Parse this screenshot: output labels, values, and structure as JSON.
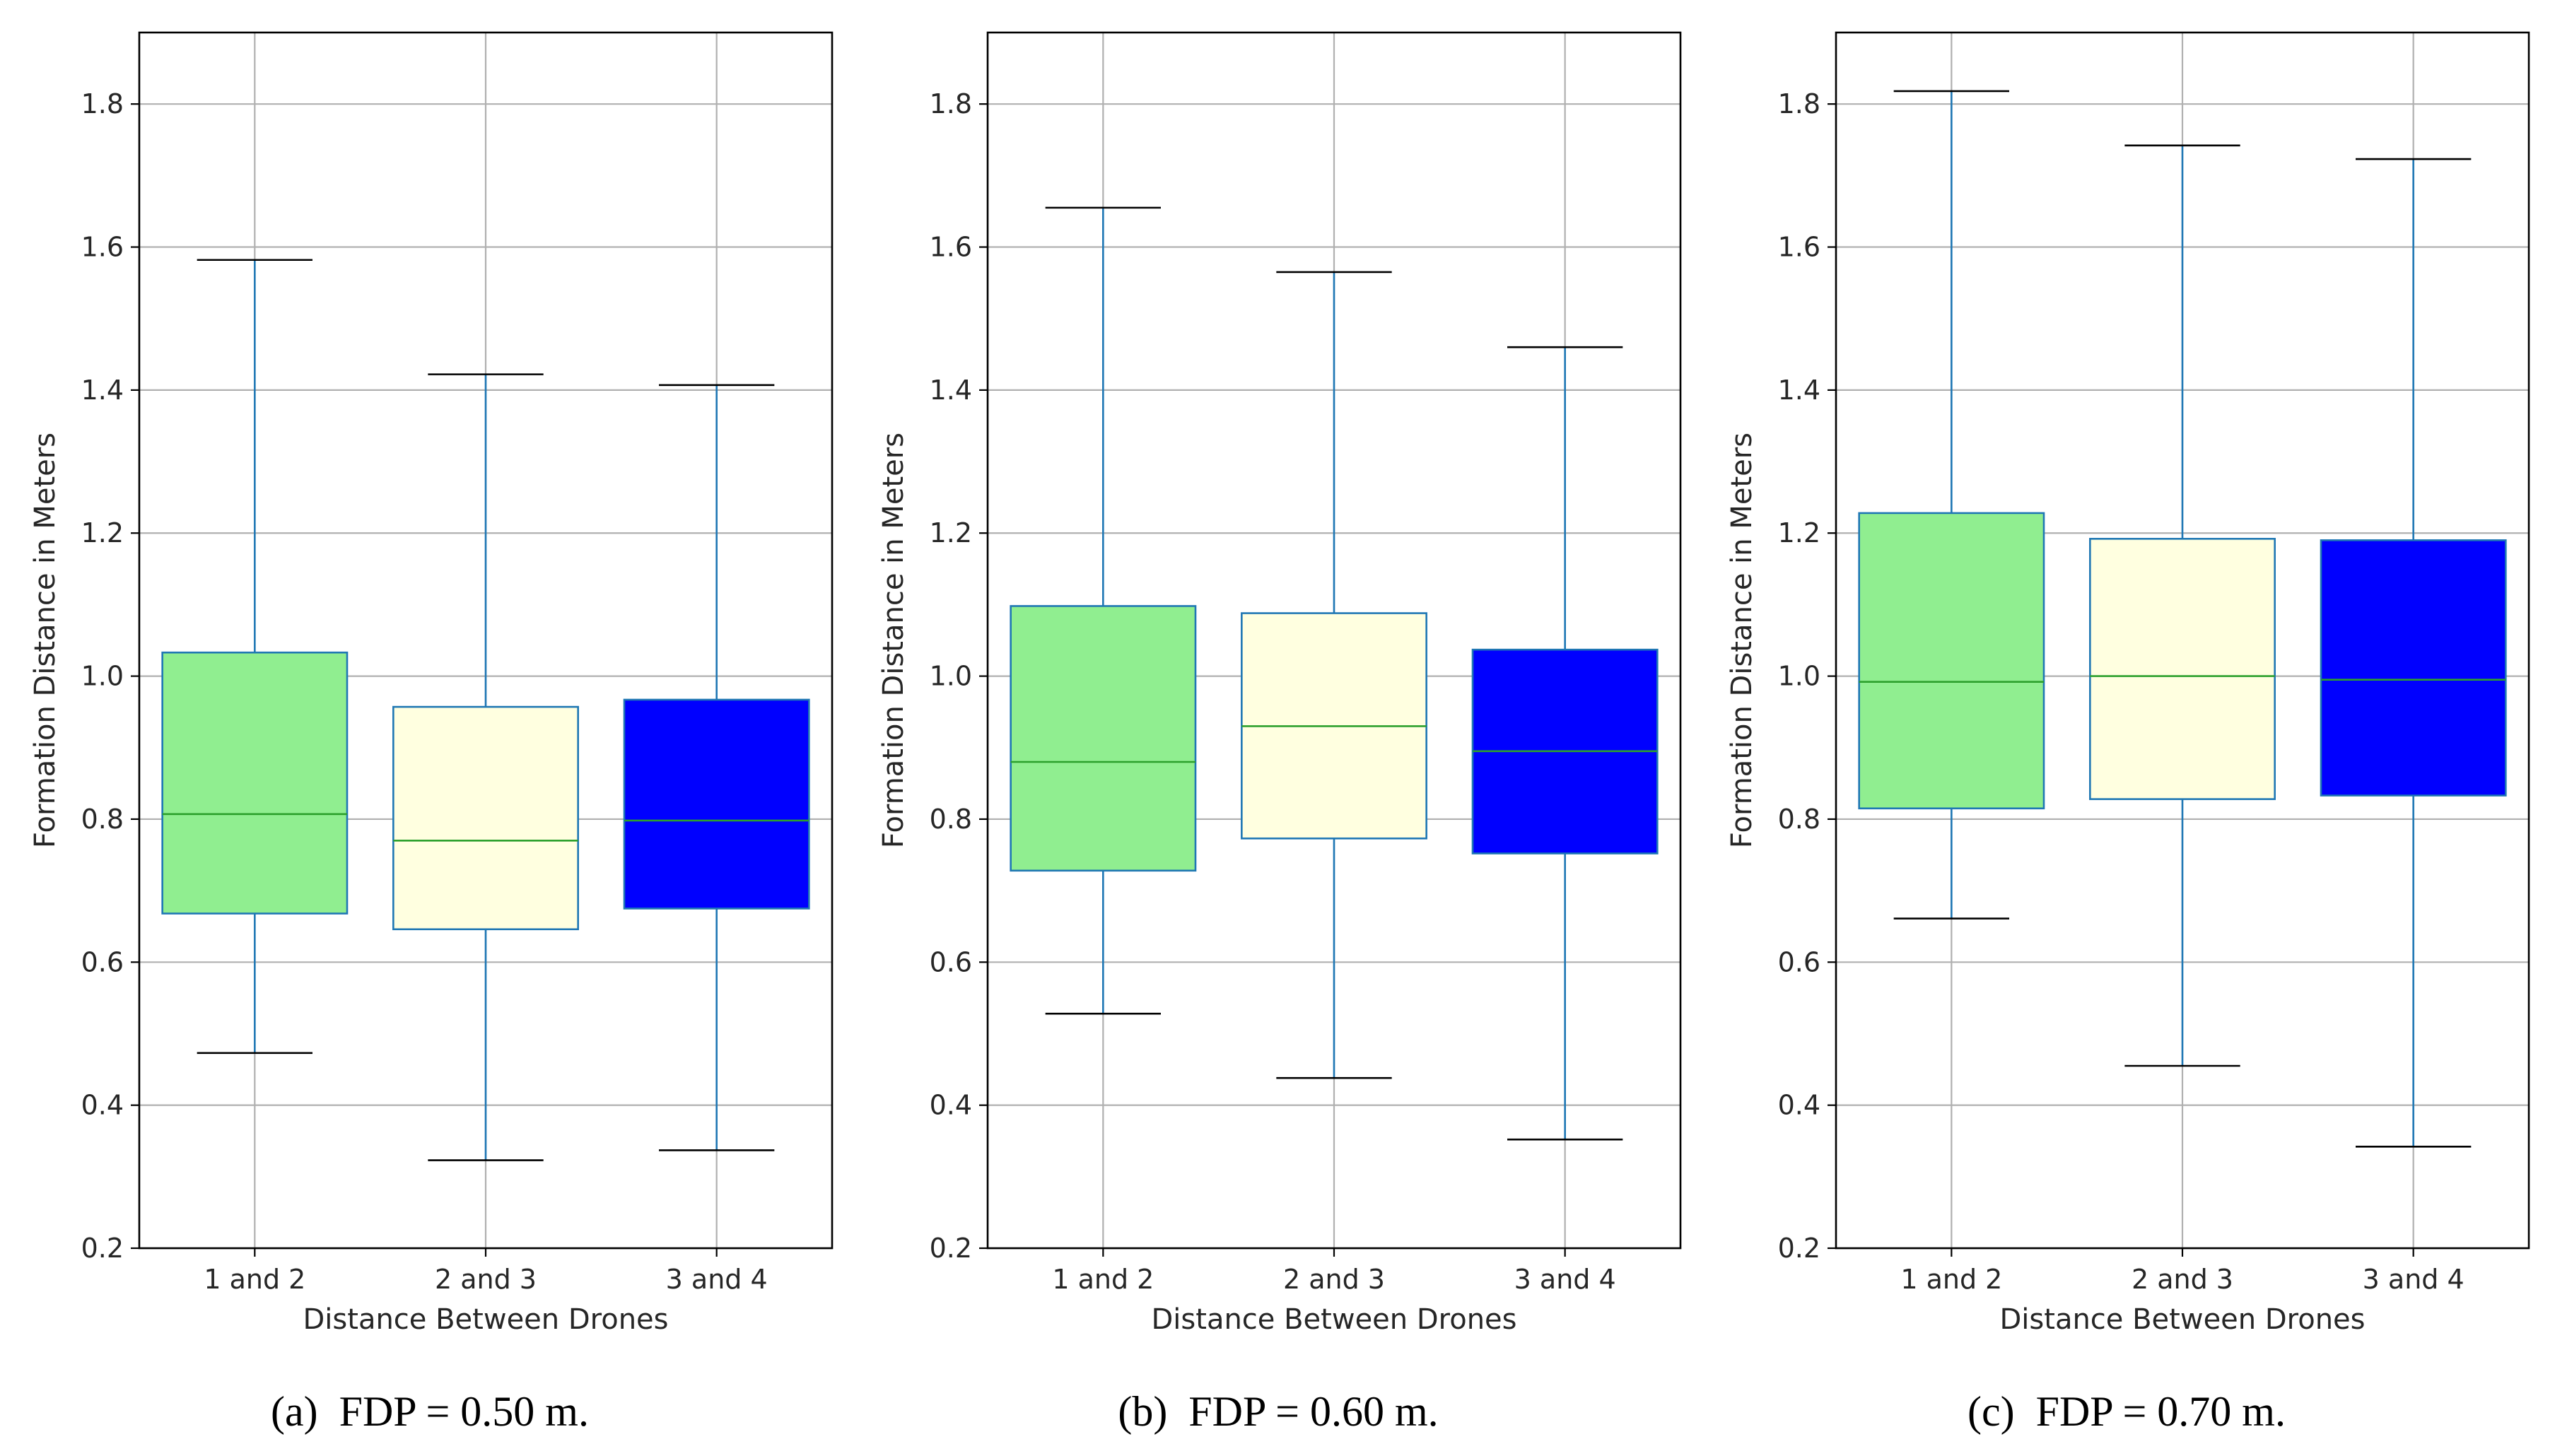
{
  "chart_data": [
    {
      "type": "box",
      "caption": "(a)  FDP = 0.50 m.",
      "xlabel": "Distance Between Drones",
      "ylabel": "Formation Distance in Meters",
      "ylim": [
        0.2,
        1.9
      ],
      "yticks": [
        "0.2",
        "0.4",
        "0.6",
        "0.8",
        "1.0",
        "1.2",
        "1.4",
        "1.6",
        "1.8"
      ],
      "grid": true,
      "categories": [
        "1 and 2",
        "2 and 3",
        "3 and 4"
      ],
      "boxes": [
        {
          "category": "1 and 2",
          "whisker_low": 0.473,
          "q1": 0.668,
          "median": 0.807,
          "q3": 1.033,
          "whisker_high": 1.582
        },
        {
          "category": "2 and 3",
          "whisker_low": 0.323,
          "q1": 0.646,
          "median": 0.77,
          "q3": 0.957,
          "whisker_high": 1.422
        },
        {
          "category": "3 and 4",
          "whisker_low": 0.337,
          "q1": 0.675,
          "median": 0.798,
          "q3": 0.967,
          "whisker_high": 1.407
        }
      ]
    },
    {
      "type": "box",
      "caption": "(b)  FDP = 0.60 m.",
      "xlabel": "Distance Between Drones",
      "ylabel": "Formation Distance in Meters",
      "ylim": [
        0.2,
        1.9
      ],
      "yticks": [
        "0.2",
        "0.4",
        "0.6",
        "0.8",
        "1.0",
        "1.2",
        "1.4",
        "1.6",
        "1.8"
      ],
      "grid": true,
      "categories": [
        "1 and 2",
        "2 and 3",
        "3 and 4"
      ],
      "boxes": [
        {
          "category": "1 and 2",
          "whisker_low": 0.528,
          "q1": 0.728,
          "median": 0.88,
          "q3": 1.098,
          "whisker_high": 1.655
        },
        {
          "category": "2 and 3",
          "whisker_low": 0.438,
          "q1": 0.773,
          "median": 0.93,
          "q3": 1.088,
          "whisker_high": 1.565
        },
        {
          "category": "3 and 4",
          "whisker_low": 0.352,
          "q1": 0.752,
          "median": 0.895,
          "q3": 1.037,
          "whisker_high": 1.46
        }
      ]
    },
    {
      "type": "box",
      "caption": "(c)  FDP = 0.70 m.",
      "xlabel": "Distance Between Drones",
      "ylabel": "Formation Distance in Meters",
      "ylim": [
        0.2,
        1.9
      ],
      "yticks": [
        "0.2",
        "0.4",
        "0.6",
        "0.8",
        "1.0",
        "1.2",
        "1.4",
        "1.6",
        "1.8"
      ],
      "grid": true,
      "categories": [
        "1 and 2",
        "2 and 3",
        "3 and 4"
      ],
      "boxes": [
        {
          "category": "1 and 2",
          "whisker_low": 0.661,
          "q1": 0.815,
          "median": 0.992,
          "q3": 1.228,
          "whisker_high": 1.818
        },
        {
          "category": "2 and 3",
          "whisker_low": 0.455,
          "q1": 0.828,
          "median": 1.0,
          "q3": 1.192,
          "whisker_high": 1.742
        },
        {
          "category": "3 and 4",
          "whisker_low": 0.342,
          "q1": 0.833,
          "median": 0.995,
          "q3": 1.19,
          "whisker_high": 1.723
        }
      ]
    }
  ],
  "colors": {
    "box_fills": [
      "#90ee90",
      "#ffffe0",
      "#0000ff"
    ],
    "box_edge": "#1f77b4",
    "whisker": "#1f77b4",
    "median": "#2ca02c",
    "cap": "#000000",
    "grid": "#b0b0b0",
    "spine": "#000000"
  }
}
